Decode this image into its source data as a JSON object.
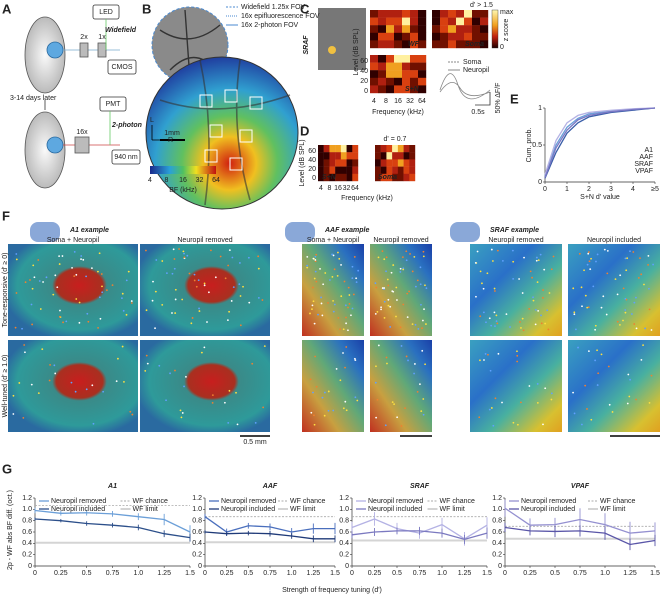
{
  "figure": {
    "panel_labels": [
      "A",
      "B",
      "C",
      "D",
      "E",
      "F",
      "G"
    ],
    "a": {
      "led": "LED",
      "widefield": "Widefield",
      "mag_2x": "2x",
      "mag_1x": "1x",
      "cmos": "CMOS",
      "later": "3-14 days later",
      "pmt": "PMT",
      "two_photon": "2-photon",
      "mag_16x": "16x",
      "laser": "940 nm"
    },
    "b": {
      "legend": [
        "Widefield 1.25x FOV",
        "16x epifluorescence FOV",
        "16x 2-photon FOV"
      ],
      "scale": "1mm",
      "right": "R",
      "left": "L",
      "colorbar_label": "BF (kHz)",
      "colorbar_ticks": [
        4,
        8,
        16,
        32,
        64
      ]
    },
    "c": {
      "area": "SRAF",
      "wf": "WF",
      "soma": "Soma",
      "sn": "S+N",
      "threshold": "d' > 1.5",
      "zscore": "z score",
      "zmax": "max",
      "zmin": "0",
      "ylabel": "Level (dB SPL)",
      "xlabel": "Frequency (kHz)",
      "yticks": [
        0,
        20,
        40,
        60
      ],
      "xticks": [
        4,
        8,
        16,
        32,
        64
      ],
      "trace_legend": [
        "Soma",
        "Neuropil"
      ],
      "time_scale": "0.5s",
      "amp_scale": "50% ΔF/F"
    },
    "d": {
      "sn": "S+N",
      "soma": "Soma",
      "dprime": "d' = 0.7",
      "ylabel": "Level (dB SPL)",
      "xlabel": "Frequency (kHz)",
      "yticks": [
        0,
        20,
        40,
        60
      ],
      "xticks": [
        4,
        8,
        16,
        32,
        64
      ]
    },
    "f": {
      "titles": [
        "A1 example",
        "AAF example",
        "SRAF example"
      ],
      "columns": [
        [
          "Soma + Neuropil",
          "Neuropil removed"
        ],
        [
          "Soma + Neuropil",
          "Neuropil removed"
        ],
        [
          "Neuropil removed",
          "Neuropil included"
        ]
      ],
      "rows": [
        "Tone-responsive (d' ≥ 0)",
        "Well-tuned (d' ≥ 1.0)"
      ],
      "scale": "0.5 mm"
    },
    "g": {
      "ylabel": "2p - WF abs BF diff. (oct.)",
      "xlabel": "Strength of frequency tuning (d')"
    }
  },
  "chart_data": [
    {
      "type": "line",
      "ylabel": "Cum. prob.",
      "xlabel": "S+N d' value",
      "legend": "right",
      "x": [
        0,
        0.5,
        1,
        1.5,
        2,
        3,
        4,
        5
      ],
      "xlim": [
        0,
        5
      ],
      "ylim": [
        0,
        1
      ],
      "xticks": [
        0,
        1,
        2,
        3,
        4,
        {
          "value": 5,
          "label": "≥5"
        }
      ],
      "yticks": [
        0,
        0.5,
        1
      ],
      "series": [
        {
          "name": "A1",
          "color": "#6b9fd8",
          "values": [
            0.08,
            0.5,
            0.74,
            0.86,
            0.92,
            0.96,
            0.98,
            1
          ]
        },
        {
          "name": "AAF",
          "color": "#3a5ea8",
          "values": [
            0.05,
            0.4,
            0.66,
            0.8,
            0.88,
            0.94,
            0.97,
            1
          ]
        },
        {
          "name": "SRAF",
          "color": "#b4b2e4",
          "values": [
            0.1,
            0.56,
            0.8,
            0.9,
            0.94,
            0.97,
            0.99,
            1
          ]
        },
        {
          "name": "VPAF",
          "color": "#7b77c4",
          "values": [
            0.06,
            0.46,
            0.7,
            0.84,
            0.9,
            0.95,
            0.98,
            1
          ]
        }
      ]
    },
    {
      "type": "line",
      "title": "A1",
      "title_color": "#6b9fd8",
      "legend": "top",
      "x": [
        0,
        0.25,
        0.5,
        0.75,
        1,
        1.25,
        1.5
      ],
      "xlim": [
        0,
        1.5
      ],
      "ylim": [
        0,
        1.2
      ],
      "xticks": [
        0,
        0.25,
        0.5,
        0.75,
        {
          "value": 1,
          "label": "1.0"
        },
        1.25,
        1.5
      ],
      "yticks": [
        0,
        0.2,
        0.4,
        0.6,
        0.8,
        {
          "value": 1,
          "label": "1.0"
        },
        1.2
      ],
      "series": [
        {
          "name": "Neuropil removed",
          "color": "#6b9fd8",
          "values": [
            0.98,
            0.93,
            0.94,
            0.92,
            0.87,
            0.82,
            0.6
          ],
          "errors": [
            0.05,
            0.04,
            0.05,
            0.05,
            0.06,
            0.1,
            0.12
          ]
        },
        {
          "name": "Neuropil included",
          "color": "#2c4f8a",
          "values": [
            0.83,
            0.8,
            0.75,
            0.72,
            0.68,
            0.57,
            0.5
          ],
          "errors": [
            0.03,
            0.03,
            0.04,
            0.04,
            0.05,
            0.06,
            0.07
          ]
        }
      ],
      "reference_lines": [
        {
          "name": "WF chance",
          "value": 1.07,
          "style": "dotted"
        },
        {
          "name": "WF limit",
          "value": 0.41,
          "style": "solid"
        }
      ]
    },
    {
      "type": "line",
      "title": "AAF",
      "title_color": "#3a5ea8",
      "legend": "top",
      "x": [
        0,
        0.25,
        0.5,
        0.75,
        1,
        1.25,
        1.5
      ],
      "xlim": [
        0,
        1.5
      ],
      "ylim": [
        0,
        1.2
      ],
      "xticks": [
        0,
        0.25,
        0.5,
        0.75,
        {
          "value": 1,
          "label": "1.0"
        },
        1.25,
        1.5
      ],
      "yticks": [
        0,
        0.2,
        0.4,
        0.6,
        0.8,
        {
          "value": 1,
          "label": "1.0"
        },
        1.2
      ],
      "series": [
        {
          "name": "Neuropil removed",
          "color": "#4a6fbd",
          "values": [
            0.87,
            0.6,
            0.71,
            0.69,
            0.6,
            0.66,
            0.66
          ],
          "errors": [
            0.05,
            0.06,
            0.05,
            0.06,
            0.07,
            0.09,
            0.1
          ]
        },
        {
          "name": "Neuropil included",
          "color": "#1f3a78",
          "values": [
            0.6,
            0.57,
            0.58,
            0.57,
            0.53,
            0.48,
            0.48
          ],
          "errors": [
            0.03,
            0.04,
            0.04,
            0.05,
            0.05,
            0.06,
            0.06
          ]
        }
      ],
      "reference_lines": [
        {
          "name": "WF chance",
          "value": 0.87,
          "style": "dotted"
        },
        {
          "name": "WF limit",
          "value": 0.42,
          "style": "solid"
        }
      ]
    },
    {
      "type": "line",
      "title": "SRAF",
      "title_color": "#a9a6dc",
      "legend": "top",
      "x": [
        0,
        0.25,
        0.5,
        0.75,
        1,
        1.25,
        1.5
      ],
      "xlim": [
        0,
        1.5
      ],
      "ylim": [
        0,
        1.2
      ],
      "xticks": [
        0,
        0.25,
        0.5,
        0.75,
        {
          "value": 1,
          "label": "1.0"
        },
        1.25,
        1.5
      ],
      "yticks": [
        0,
        0.2,
        0.4,
        0.6,
        0.8,
        {
          "value": 1,
          "label": "1.0"
        },
        1.2
      ],
      "series": [
        {
          "name": "Neuropil removed",
          "color": "#b4b2e4",
          "values": [
            0.68,
            0.83,
            0.66,
            0.58,
            0.73,
            0.48,
            0.72
          ],
          "errors": [
            0.1,
            0.12,
            0.1,
            0.1,
            0.12,
            0.12,
            0.14
          ]
        },
        {
          "name": "Neuropil included",
          "color": "#7b79c0",
          "values": [
            0.55,
            0.6,
            0.62,
            0.62,
            0.58,
            0.47,
            0.58
          ],
          "errors": [
            0.06,
            0.07,
            0.06,
            0.07,
            0.08,
            0.08,
            0.1
          ]
        }
      ],
      "reference_lines": [
        {
          "name": "WF chance",
          "value": 0.87,
          "style": "dotted"
        },
        {
          "name": "WF limit",
          "value": 0.45,
          "style": "solid"
        }
      ]
    },
    {
      "type": "line",
      "title": "VPAF",
      "title_color": "#6a66b8",
      "legend": "top",
      "x": [
        0,
        0.25,
        0.5,
        0.75,
        1,
        1.25,
        1.5
      ],
      "xlim": [
        0,
        1.5
      ],
      "ylim": [
        0,
        1.2
      ],
      "xticks": [
        0,
        0.25,
        0.5,
        0.75,
        {
          "value": 1,
          "label": "1.0"
        },
        1.25,
        1.5
      ],
      "yticks": [
        0,
        0.2,
        0.4,
        0.6,
        0.8,
        {
          "value": 1,
          "label": "1.0"
        },
        1.2
      ],
      "series": [
        {
          "name": "Neuropil removed",
          "color": "#9490d0",
          "values": [
            1.02,
            0.72,
            0.73,
            0.82,
            0.73,
            0.58,
            0.62
          ],
          "errors": [
            0.15,
            0.12,
            0.12,
            0.2,
            0.2,
            0.2,
            0.15
          ]
        },
        {
          "name": "Neuropil included",
          "color": "#5a56a8",
          "values": [
            0.68,
            0.62,
            0.61,
            0.62,
            0.58,
            0.38,
            0.45
          ],
          "errors": [
            0.08,
            0.08,
            0.1,
            0.1,
            0.12,
            0.1,
            0.1
          ]
        }
      ],
      "reference_lines": [
        {
          "name": "WF chance",
          "value": 0.7,
          "style": "dotted"
        },
        {
          "name": "WF limit",
          "value": 0.48,
          "style": "solid"
        }
      ]
    }
  ]
}
